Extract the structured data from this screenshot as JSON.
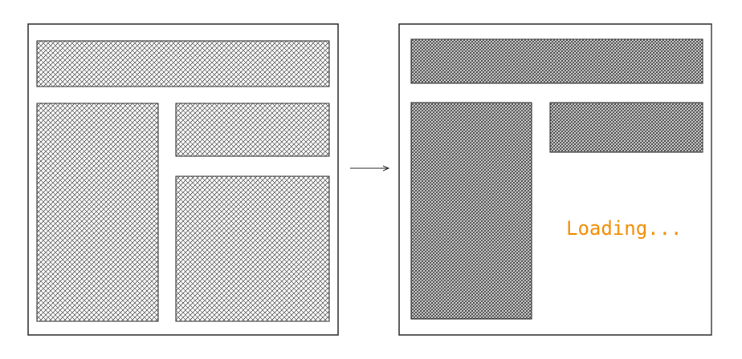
{
  "diagram": {
    "before": {
      "label": "",
      "panels": [
        "header",
        "sidebar",
        "top-card",
        "main-content"
      ]
    },
    "after": {
      "label": "",
      "panels": [
        "header",
        "sidebar",
        "top-card"
      ],
      "loading_text": "Loading..."
    }
  },
  "colors": {
    "frame_stroke": "#222222",
    "hatch": "#3a3a3a",
    "hatch_dense": "#2b2b2b",
    "loading": "#f08c00",
    "arrow": "#222222"
  }
}
